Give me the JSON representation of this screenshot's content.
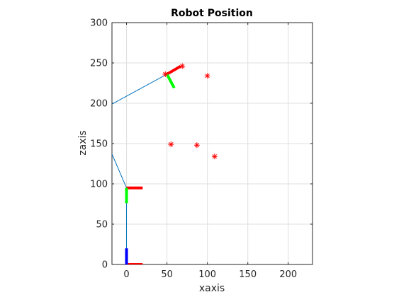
{
  "chart_data": {
    "type": "line",
    "title": "Robot Position",
    "xlabel": "xaxis",
    "ylabel": "zaxis",
    "xlim": [
      -18,
      230
    ],
    "ylim": [
      0,
      300
    ],
    "xticks": [
      0,
      50,
      100,
      150,
      200
    ],
    "yticks": [
      0,
      50,
      100,
      150,
      200,
      250,
      300
    ],
    "grid": true,
    "colors": {
      "link": "#0072BD",
      "x_axis": "#FF0000",
      "y_axis": "#00FF00",
      "z_axis": "#0000FF",
      "marker": "#FF0000",
      "grid": "#DFDFDF"
    },
    "links": [
      {
        "x": [
          0,
          0
        ],
        "y": [
          0,
          95
        ]
      },
      {
        "x": [
          0,
          -18
        ],
        "y": [
          95,
          137
        ]
      },
      {
        "x": [
          -18,
          50
        ],
        "y": [
          199,
          236
        ]
      }
    ],
    "frames": [
      {
        "x": [
          0,
          20
        ],
        "y": [
          0,
          0
        ],
        "axis": "x"
      },
      {
        "x": [
          0,
          0
        ],
        "y": [
          0,
          20
        ],
        "axis": "z"
      },
      {
        "x": [
          0,
          20
        ],
        "y": [
          95,
          95
        ],
        "axis": "x"
      },
      {
        "x": [
          0,
          0
        ],
        "y": [
          95,
          76
        ],
        "axis": "y"
      },
      {
        "x": [
          50,
          67
        ],
        "y": [
          236,
          246
        ],
        "axis": "x"
      },
      {
        "x": [
          50,
          59
        ],
        "y": [
          236,
          219
        ],
        "axis": "y"
      }
    ],
    "markers": {
      "symbol": "*",
      "x": [
        48,
        69,
        100,
        55,
        87,
        109
      ],
      "y": [
        236,
        246,
        234,
        149,
        148,
        134
      ]
    }
  }
}
